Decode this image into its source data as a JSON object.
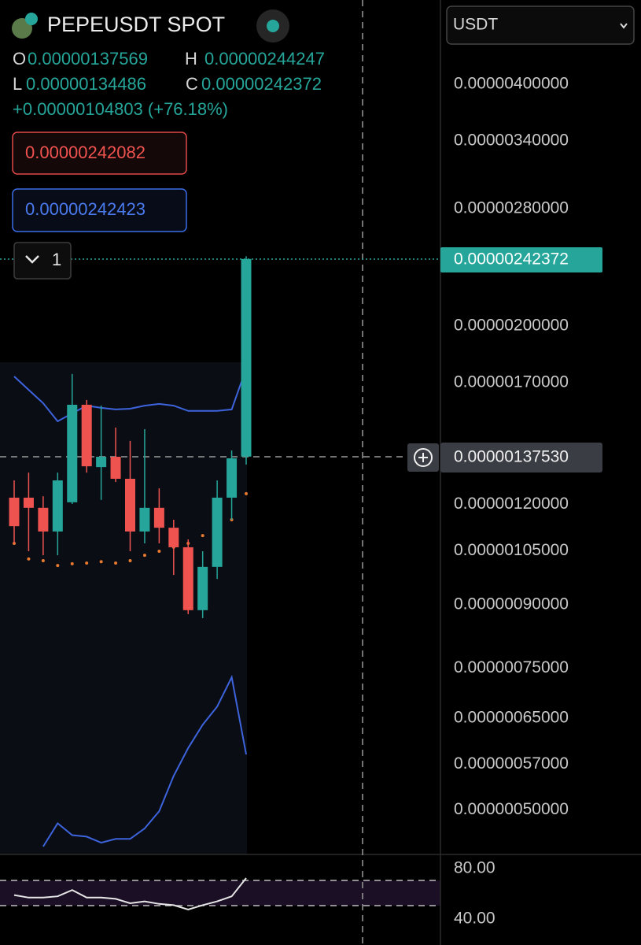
{
  "header": {
    "symbol": "PEPEUSDT SPOT",
    "open_label": "O",
    "open": "0.00000137569",
    "high_label": "H",
    "high": "0.00000244247",
    "low_label": "L",
    "low": "0.00000134486",
    "close_label": "C",
    "close": "0.00000242372",
    "change": "+0.00000104803 (+76.18%)",
    "sell_price": "0.00000242082",
    "buy_price": "0.00000242423",
    "collapse_count": "1",
    "quote_currency": "USDT",
    "last_price_tag": "0.00000242372",
    "crosshair_price_tag": "0.00000137530"
  },
  "chart_data": [
    {
      "type": "candlestick",
      "log_scale": true,
      "grid": false,
      "up_color": "#26a69a",
      "down_color": "#ef5350",
      "open": [
        1.223e-06,
        1.223e-06,
        1.188e-06,
        1.11e-06,
        1.207e-06,
        1.596e-06,
        1.335e-06,
        1.375e-06,
        1.291e-06,
        1.11e-06,
        1.188e-06,
        1.122e-06,
        1.061e-06,
        8.86e-07,
        1.003e-06,
        1.223e-06,
        1.37569e-06
      ],
      "high": [
        1.285e-06,
        1.314e-06,
        1.228e-06,
        1.314e-06,
        1.743e-06,
        1.618e-06,
        1.592e-06,
        1.495e-06,
        1.439e-06,
        1.488e-06,
        1.256e-06,
        1.148e-06,
        1.085e-06,
        1.049e-06,
        1.285e-06,
        1.4e-06,
        2.44247e-06
      ],
      "low": [
        1.073e-06,
        1.049e-06,
        1.037e-06,
        1.037e-06,
        1.201e-06,
        1.314e-06,
        1.215e-06,
        1.279e-06,
        1.049e-06,
        1.073e-06,
        1.073e-06,
        9.8e-07,
        8.76e-07,
        8.66e-07,
        9.69e-07,
        1.148e-06,
        1.34486e-06
      ],
      "close": [
        1.127e-06,
        1.188e-06,
        1.11e-06,
        1.285e-06,
        1.596e-06,
        1.338e-06,
        1.375e-06,
        1.291e-06,
        1.11e-06,
        1.188e-06,
        1.122e-06,
        1.061e-06,
        8.86e-07,
        1.003e-06,
        1.223e-06,
        1.369e-06,
        2.42372e-06
      ],
      "overlays": [
        {
          "type": "line",
          "color": "#3d63dd",
          "values": [
            1.731e-06,
            1.666e-06,
            1.603e-06,
            1.522e-06,
            1.557e-06,
            1.592e-06,
            1.582e-06,
            1.575e-06,
            1.578e-06,
            1.592e-06,
            1.6e-06,
            1.592e-06,
            1.568e-06,
            1.568e-06,
            1.568e-06,
            1.575e-06,
            1.771e-06
          ]
        },
        {
          "type": "line",
          "color": "#3d63dd",
          "values": [
            null,
            null,
            4.5e-07,
            4.81e-07,
            4.65e-07,
            4.63e-07,
            4.55e-07,
            4.6e-07,
            4.6e-07,
            4.74e-07,
            4.98e-07,
            5.51e-07,
            5.97e-07,
            6.38e-07,
            6.72e-07,
            7.31e-07,
            5.86e-07
          ]
        },
        {
          "type": "dots",
          "color": "#e8792f",
          "values": [
            1.073e-06,
            1.026e-06,
            1.021e-06,
            1.007e-06,
            1.012e-06,
            1.014e-06,
            1.018e-06,
            1.014e-06,
            1.021e-06,
            1.037e-06,
            1.049e-06,
            1.061e-06,
            1.073e-06,
            1.097e-06,
            1.135e-06,
            1.148e-06,
            1.237e-06
          ]
        }
      ],
      "ylim": [
        4.4e-07,
        5.09e-06
      ],
      "yticks": [
        {
          "value": 4e-06,
          "label": "0.00000400000"
        },
        {
          "value": 3.4e-06,
          "label": "0.00000340000"
        },
        {
          "value": 2.8e-06,
          "label": "0.00000280000"
        },
        {
          "value": 2e-06,
          "label": "0.00000200000"
        },
        {
          "value": 1.7e-06,
          "label": "0.00000170000"
        },
        {
          "value": 1.2e-06,
          "label": "0.00000120000"
        },
        {
          "value": 1.05e-06,
          "label": "0.00000105000"
        },
        {
          "value": 9e-07,
          "label": "0.00000090000"
        },
        {
          "value": 7.5e-07,
          "label": "0.00000075000"
        },
        {
          "value": 6.5e-07,
          "label": "0.00000065000"
        },
        {
          "value": 5.7e-07,
          "label": "0.00000057000"
        },
        {
          "value": 5e-07,
          "label": "0.00000050000"
        }
      ]
    },
    {
      "type": "line",
      "color": "#e6e6e6",
      "values": [
        59,
        57,
        57,
        58,
        63,
        57,
        57,
        56,
        52.5,
        54,
        52,
        51,
        47.5,
        51,
        54,
        58,
        72.5
      ],
      "ylim": [
        19.4,
        91.25
      ],
      "yticks": [
        {
          "value": 80,
          "label": "80.00"
        },
        {
          "value": 40,
          "label": "40.00"
        }
      ]
    }
  ]
}
